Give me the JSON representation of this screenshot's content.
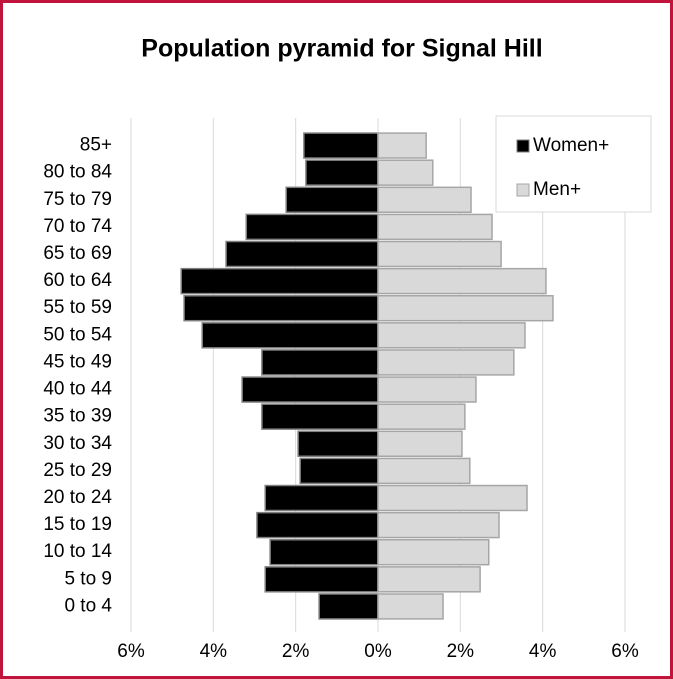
{
  "chart_data": {
    "type": "pyramid",
    "title": "Population pyramid for Signal Hill",
    "categories": [
      "85+",
      "80 to 84",
      "75 to 79",
      "70 to 74",
      "65 to 69",
      "60 to 64",
      "55 to 59",
      "50 to 54",
      "45 to 49",
      "40 to 44",
      "35 to 39",
      "30 to 34",
      "25 to 29",
      "20 to 24",
      "15 to 19",
      "10 to 14",
      "5 to 9",
      "0 to 4"
    ],
    "series": [
      {
        "name": "Women+",
        "color": "#000000",
        "values": [
          -1.8,
          -1.75,
          -2.23,
          -3.2,
          -3.69,
          -4.78,
          -4.71,
          -4.27,
          -2.82,
          -3.3,
          -2.82,
          -1.94,
          -1.89,
          -2.74,
          -2.94,
          -2.62,
          -2.74,
          -1.43
        ]
      },
      {
        "name": "Men+",
        "color": "#d9d9d9",
        "values": [
          1.17,
          1.33,
          2.26,
          2.77,
          2.99,
          4.08,
          4.25,
          3.57,
          3.3,
          2.38,
          2.11,
          2.04,
          2.23,
          3.62,
          2.94,
          2.69,
          2.48,
          1.58
        ]
      }
    ],
    "xlim": [
      -6,
      6
    ],
    "xticks": [
      {
        "value": -6,
        "label": "6%"
      },
      {
        "value": -4,
        "label": "4%"
      },
      {
        "value": -2,
        "label": "2%"
      },
      {
        "value": 0,
        "label": "0%"
      },
      {
        "value": 2,
        "label": "2%"
      },
      {
        "value": 4,
        "label": "4%"
      },
      {
        "value": 6,
        "label": "6%"
      }
    ],
    "grid": true,
    "legend": "top-right"
  }
}
